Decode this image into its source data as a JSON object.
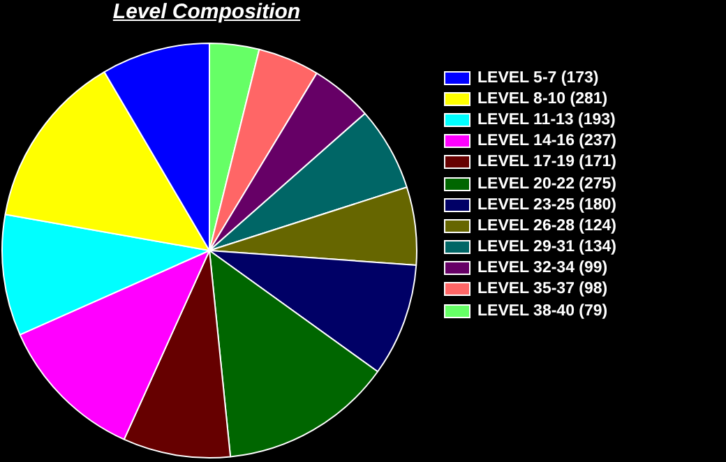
{
  "chart_data": {
    "type": "pie",
    "title": "Level Composition",
    "categories": [
      "LEVEL 5-7 (173)",
      "LEVEL 8-10 (281)",
      "LEVEL 11-13 (193)",
      "LEVEL 14-16 (237)",
      "LEVEL 17-19 (171)",
      "LEVEL 20-22 (275)",
      "LEVEL 23-25 (180)",
      "LEVEL 26-28 (124)",
      "LEVEL 29-31 (134)",
      "LEVEL 32-34 (99)",
      "LEVEL 35-37 (98)",
      "LEVEL 38-40 (79)"
    ],
    "values": [
      173,
      281,
      193,
      237,
      171,
      275,
      180,
      124,
      134,
      99,
      98,
      79
    ],
    "colors": [
      "#0000ff",
      "#ffff00",
      "#00ffff",
      "#ff00ff",
      "#660000",
      "#006600",
      "#000066",
      "#666600",
      "#006666",
      "#660066",
      "#ff6666",
      "#66ff66"
    ],
    "legend": "right"
  }
}
